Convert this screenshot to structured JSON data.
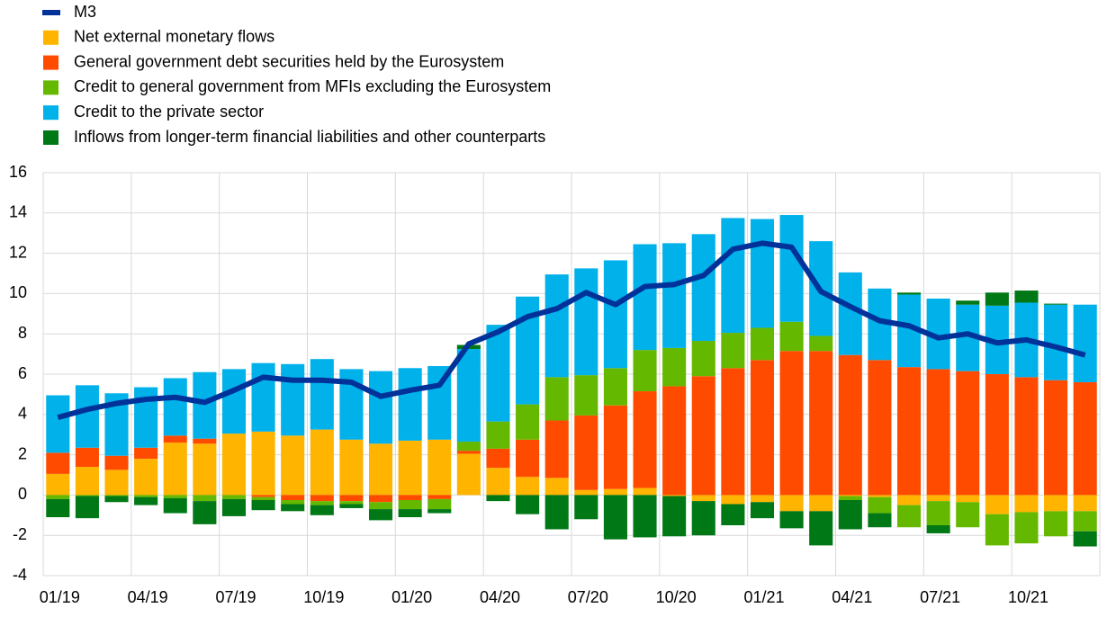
{
  "chart_data": {
    "type": "bar",
    "categories": [
      "01/19",
      null,
      null,
      "04/19",
      null,
      null,
      "07/19",
      null,
      null,
      "10/19",
      null,
      null,
      "01/20",
      null,
      null,
      "04/20",
      null,
      null,
      "07/20",
      null,
      null,
      "10/20",
      null,
      null,
      "01/21",
      null,
      null,
      "04/21",
      null,
      null,
      "07/21",
      null,
      null,
      "10/21",
      null,
      null
    ],
    "series": [
      {
        "name": "M3",
        "type": "line",
        "color": "#003299",
        "values": [
          3.85,
          4.25,
          4.55,
          4.75,
          4.85,
          4.6,
          5.2,
          5.85,
          5.7,
          5.7,
          5.6,
          4.9,
          5.2,
          5.45,
          7.5,
          8.1,
          8.85,
          9.25,
          10.05,
          9.45,
          10.35,
          10.45,
          10.9,
          12.2,
          12.5,
          12.3,
          10.1,
          9.35,
          8.65,
          8.4,
          7.8,
          8.0,
          7.55,
          7.7,
          7.35,
          6.95
        ]
      },
      {
        "name": "Net external monetary flows",
        "color": "#ffb400",
        "values": [
          1.05,
          1.4,
          1.25,
          1.8,
          2.6,
          2.55,
          3.05,
          3.15,
          2.95,
          3.25,
          2.75,
          2.55,
          2.7,
          2.75,
          2.05,
          1.35,
          0.9,
          0.85,
          0.25,
          0.3,
          0.35,
          -0.05,
          -0.3,
          -0.45,
          -0.35,
          -0.8,
          -0.8,
          -0.05,
          -0.1,
          -0.5,
          -0.3,
          -0.35,
          -0.95,
          -0.85,
          -0.8,
          -0.8
        ]
      },
      {
        "name": "General government debt securities held by the Eurosystem",
        "color": "#ff4b00",
        "values": [
          1.05,
          0.95,
          0.7,
          0.55,
          0.35,
          0.25,
          0,
          -0.1,
          -0.25,
          -0.3,
          -0.3,
          -0.35,
          -0.25,
          -0.2,
          0.15,
          0.95,
          1.85,
          2.85,
          3.7,
          4.15,
          4.8,
          5.4,
          5.9,
          6.3,
          6.7,
          7.15,
          7.15,
          6.95,
          6.7,
          6.35,
          6.25,
          6.15,
          6.0,
          5.85,
          5.7,
          5.6
        ]
      },
      {
        "name": "Credit to general government from MFIs excluding the Eurosystem",
        "color": "#65b800",
        "values": [
          -0.2,
          -0.05,
          -0.05,
          -0.1,
          -0.15,
          -0.3,
          -0.2,
          -0.15,
          -0.2,
          -0.2,
          -0.15,
          -0.35,
          -0.45,
          -0.5,
          0.45,
          1.35,
          1.75,
          2.15,
          2.0,
          1.85,
          2.05,
          1.9,
          1.75,
          1.75,
          1.6,
          1.45,
          0.75,
          -0.2,
          -0.8,
          -1.1,
          -1.2,
          -1.25,
          -1.55,
          -1.55,
          -1.25,
          -1.0
        ]
      },
      {
        "name": "Credit to the private sector",
        "color": "#00b1ea",
        "values": [
          2.85,
          3.1,
          3.1,
          3.0,
          2.85,
          3.3,
          3.2,
          3.4,
          3.55,
          3.5,
          3.5,
          3.6,
          3.6,
          3.65,
          4.6,
          4.8,
          5.35,
          5.1,
          5.3,
          5.35,
          5.25,
          5.2,
          5.3,
          5.7,
          5.4,
          5.3,
          4.7,
          4.1,
          3.55,
          3.6,
          3.5,
          3.3,
          3.4,
          3.7,
          3.75,
          3.85
        ]
      },
      {
        "name": "Inflows from longer-term financial liabilities and other counterparts",
        "color": "#007816",
        "values": [
          -0.9,
          -1.1,
          -0.3,
          -0.4,
          -0.75,
          -1.15,
          -0.85,
          -0.5,
          -0.35,
          -0.5,
          -0.2,
          -0.55,
          -0.4,
          -0.2,
          0.2,
          -0.3,
          -0.95,
          -1.7,
          -1.2,
          -2.2,
          -2.1,
          -2.0,
          -1.7,
          -1.05,
          -0.8,
          -0.85,
          -1.7,
          -1.45,
          -0.7,
          0.1,
          -0.4,
          0.2,
          0.65,
          0.6,
          0.05,
          -0.75
        ]
      }
    ],
    "ylim": [
      -4,
      16
    ],
    "yticks": [
      -4,
      -2,
      0,
      2,
      4,
      6,
      8,
      10,
      12,
      14,
      16
    ],
    "grid": true,
    "legend": "top-left"
  }
}
